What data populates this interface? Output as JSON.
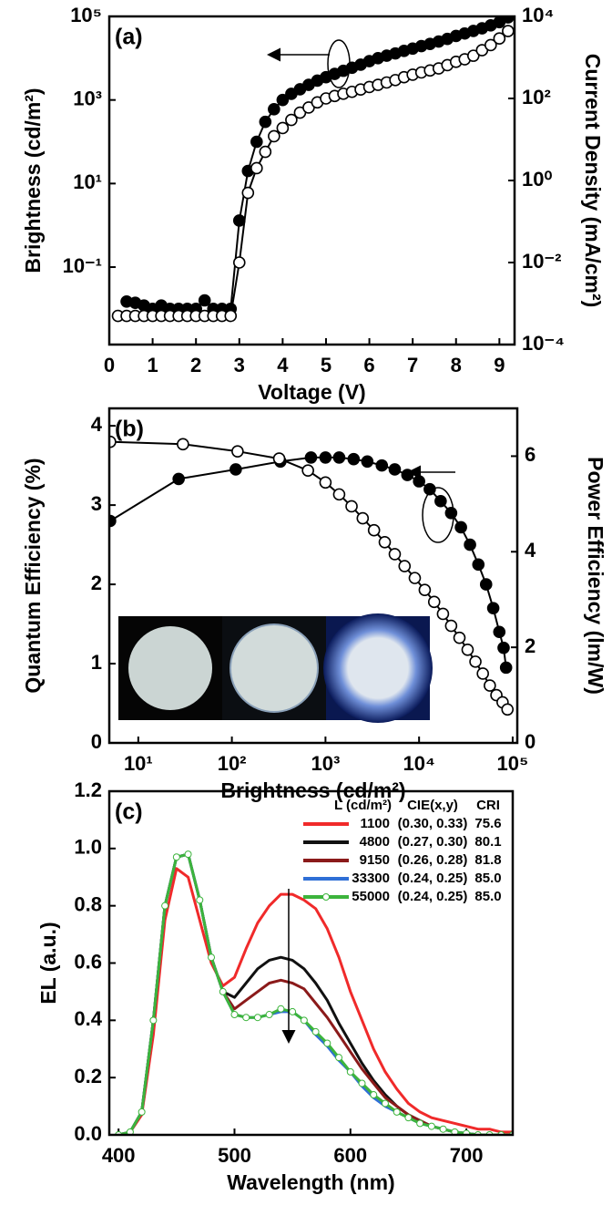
{
  "chart_data": [
    {
      "type": "line",
      "panel_label": "(a)",
      "x_label": "Voltage (V)",
      "y_label": "Brightness (cd/m²)",
      "y2_label": "Current Density (mA/cm²)",
      "xlim": [
        0,
        9.35
      ],
      "xticks": [
        0,
        1,
        2,
        3,
        4,
        5,
        6,
        7,
        8,
        9
      ],
      "ylim": [
        0.0014,
        100000
      ],
      "ylog": true,
      "yticks": [
        {
          "value": 0.1,
          "label": "10⁻¹"
        },
        {
          "value": 10,
          "label": "10¹"
        },
        {
          "value": 1000,
          "label": "10³"
        },
        {
          "value": 100000,
          "label": "10⁵"
        }
      ],
      "y2lim": [
        0.0001,
        10000
      ],
      "y2log": true,
      "y2ticks": [
        {
          "value": 0.0001,
          "label": "10⁻⁴"
        },
        {
          "value": 0.01,
          "label": "10⁻²"
        },
        {
          "value": 1,
          "label": "10⁰"
        },
        {
          "value": 100,
          "label": "10²"
        },
        {
          "value": 10000,
          "label": "10⁴"
        }
      ],
      "x": [
        0.2,
        0.4,
        0.6,
        0.8,
        1.0,
        1.2,
        1.4,
        1.6,
        1.8,
        2.0,
        2.2,
        2.4,
        2.6,
        2.8,
        3.0,
        3.2,
        3.4,
        3.6,
        3.8,
        4.0,
        4.2,
        4.4,
        4.6,
        4.8,
        5.0,
        5.2,
        5.4,
        5.6,
        5.8,
        6.0,
        6.2,
        6.4,
        6.6,
        6.8,
        7.0,
        7.2,
        7.4,
        7.6,
        7.8,
        8.0,
        8.2,
        8.4,
        8.6,
        8.8,
        9.0,
        9.2
      ],
      "series": [
        {
          "color": "#000000",
          "marker": "filled-circle",
          "values": [
            null,
            0.015,
            0.014,
            0.012,
            0.01,
            0.012,
            0.01,
            0.01,
            0.01,
            0.01,
            0.016,
            0.01,
            0.01,
            0.01,
            1.3,
            20,
            100,
            300,
            600,
            1000,
            1400,
            1800,
            2300,
            2900,
            3500,
            4200,
            5000,
            5900,
            7000,
            8500,
            10000,
            11500,
            13000,
            15000,
            17000,
            19500,
            22000,
            25000,
            29000,
            34000,
            39000,
            45000,
            52000,
            61000,
            73000,
            95000
          ]
        },
        {
          "color": "#000000",
          "marker": "open-circle",
          "axis": "y2",
          "values": [
            0.0005,
            0.0005,
            0.0005,
            0.0005,
            0.0005,
            0.0005,
            0.0005,
            0.0005,
            0.0005,
            0.0005,
            0.0005,
            0.0005,
            0.0005,
            0.0005,
            0.01,
            0.5,
            2,
            5,
            12,
            19,
            30,
            45,
            60,
            80,
            100,
            115,
            130,
            145,
            165,
            190,
            215,
            245,
            280,
            330,
            380,
            430,
            480,
            540,
            650,
            780,
            900,
            1100,
            1500,
            2000,
            2900,
            4400
          ]
        }
      ]
    },
    {
      "type": "line",
      "panel_label": "(b)",
      "x_label": "Brightness (cd/m²)",
      "y_label": "Quantum Efficiency (%)",
      "y2_label": "Power Efficiency (lm/W)",
      "xlim": [
        4.9,
        112000
      ],
      "xlog": true,
      "xticks": [
        {
          "value": 10,
          "label": "10¹"
        },
        {
          "value": 100,
          "label": "10²"
        },
        {
          "value": 1000,
          "label": "10³"
        },
        {
          "value": 10000,
          "label": "10⁴"
        },
        {
          "value": 100000,
          "label": "10⁵"
        }
      ],
      "ylim": [
        0,
        4.22
      ],
      "yticks": [
        0,
        1,
        2,
        3,
        4
      ],
      "y2lim": [
        0,
        7
      ],
      "y2ticks": [
        0,
        2,
        4,
        6
      ],
      "series": [
        {
          "color": "#000000",
          "marker": "filled-circle",
          "x": [
            5,
            27,
            110,
            330,
            700,
            1000,
            1400,
            2000,
            2800,
            4000,
            5500,
            7500,
            10000,
            13000,
            17000,
            22000,
            28000,
            35000,
            43000,
            52000,
            62000,
            72000,
            80000,
            85000
          ],
          "values": [
            2.8,
            3.33,
            3.45,
            3.55,
            3.6,
            3.6,
            3.6,
            3.58,
            3.55,
            3.5,
            3.45,
            3.38,
            3.3,
            3.2,
            3.05,
            2.9,
            2.72,
            2.5,
            2.25,
            2.0,
            1.7,
            1.4,
            1.2,
            0.95
          ]
        },
        {
          "color": "#000000",
          "marker": "open-circle",
          "axis": "y2",
          "x": [
            5,
            30,
            115,
            320,
            650,
            1000,
            1400,
            1900,
            2500,
            3300,
            4300,
            5500,
            7000,
            9000,
            11500,
            14500,
            18000,
            22000,
            27000,
            33000,
            40000,
            48000,
            57000,
            67000,
            78000,
            88000
          ],
          "values": [
            6.3,
            6.25,
            6.1,
            5.95,
            5.7,
            5.45,
            5.2,
            4.95,
            4.7,
            4.45,
            4.2,
            3.95,
            3.7,
            3.45,
            3.2,
            2.95,
            2.7,
            2.45,
            2.2,
            1.95,
            1.7,
            1.45,
            1.2,
            1.0,
            0.85,
            0.7
          ]
        }
      ]
    },
    {
      "type": "line",
      "panel_label": "(c)",
      "x_label": "Wavelength (nm)",
      "y_label": "EL (a.u.)",
      "xlim": [
        392,
        740
      ],
      "xticks": [
        400,
        500,
        600,
        700
      ],
      "ylim": [
        0,
        1.2
      ],
      "yticks": [
        {
          "value": 0,
          "label": "0.0"
        },
        0.2,
        0.4,
        0.6,
        0.8,
        {
          "value": 1,
          "label": "1.0"
        },
        1.2
      ],
      "legend_columns": [
        "L (cd/m²)",
        "CIE(x,y)",
        "CRI"
      ],
      "x": [
        400,
        410,
        420,
        430,
        440,
        450,
        460,
        470,
        480,
        490,
        500,
        510,
        520,
        530,
        540,
        550,
        560,
        570,
        580,
        590,
        600,
        610,
        620,
        630,
        640,
        650,
        660,
        670,
        680,
        690,
        700,
        710,
        720,
        730,
        740
      ],
      "series": [
        {
          "name": "1100",
          "cie": "(0.30, 0.33)",
          "cri": "75.6",
          "color": "#f02a2a",
          "values": [
            0,
            0.01,
            0.07,
            0.35,
            0.75,
            0.93,
            0.9,
            0.75,
            0.6,
            0.52,
            0.55,
            0.65,
            0.74,
            0.8,
            0.84,
            0.84,
            0.82,
            0.79,
            0.72,
            0.62,
            0.5,
            0.4,
            0.3,
            0.22,
            0.16,
            0.11,
            0.08,
            0.06,
            0.05,
            0.04,
            0.03,
            0.02,
            0.02,
            0.01,
            0.01
          ]
        },
        {
          "name": "4800",
          "cie": "(0.27, 0.30)",
          "cri": "80.1",
          "color": "#111111",
          "values": [
            0,
            0.01,
            0.08,
            0.4,
            0.8,
            0.97,
            0.98,
            0.82,
            0.62,
            0.5,
            0.48,
            0.53,
            0.58,
            0.61,
            0.62,
            0.61,
            0.58,
            0.53,
            0.47,
            0.39,
            0.32,
            0.25,
            0.19,
            0.14,
            0.1,
            0.07,
            0.05,
            0.03,
            0.02,
            0.01,
            0.005,
            0,
            0,
            0,
            0
          ]
        },
        {
          "name": "9150",
          "cie": "(0.26, 0.28)",
          "cri": "81.8",
          "color": "#8b1a1a",
          "values": [
            0,
            0.01,
            0.08,
            0.4,
            0.8,
            0.97,
            0.98,
            0.82,
            0.62,
            0.5,
            0.44,
            0.47,
            0.5,
            0.53,
            0.54,
            0.53,
            0.51,
            0.46,
            0.41,
            0.35,
            0.29,
            0.23,
            0.18,
            0.13,
            0.1,
            0.07,
            0.05,
            0.03,
            0.02,
            0.01,
            0.005,
            0,
            0,
            0,
            0
          ]
        },
        {
          "name": "33300",
          "cie": "(0.24, 0.25)",
          "cri": "85.0",
          "color": "#2f6fd6",
          "values": [
            0,
            0.01,
            0.08,
            0.4,
            0.8,
            0.97,
            0.98,
            0.82,
            0.62,
            0.5,
            0.42,
            0.41,
            0.41,
            0.42,
            0.43,
            0.43,
            0.4,
            0.35,
            0.31,
            0.26,
            0.22,
            0.17,
            0.13,
            0.1,
            0.08,
            0.06,
            0.04,
            0.03,
            0.02,
            0.01,
            0.005,
            0,
            0,
            0,
            0
          ]
        },
        {
          "name": "55000",
          "cie": "(0.24, 0.25)",
          "cri": "85.0",
          "color": "#3cb43c",
          "marker": "open-circle",
          "values": [
            0,
            0.01,
            0.08,
            0.4,
            0.8,
            0.97,
            0.98,
            0.82,
            0.62,
            0.5,
            0.42,
            0.41,
            0.41,
            0.42,
            0.44,
            0.43,
            0.4,
            0.36,
            0.32,
            0.27,
            0.22,
            0.18,
            0.14,
            0.11,
            0.08,
            0.06,
            0.04,
            0.03,
            0.02,
            0.01,
            0.005,
            0,
            0,
            0,
            0
          ]
        }
      ]
    }
  ]
}
